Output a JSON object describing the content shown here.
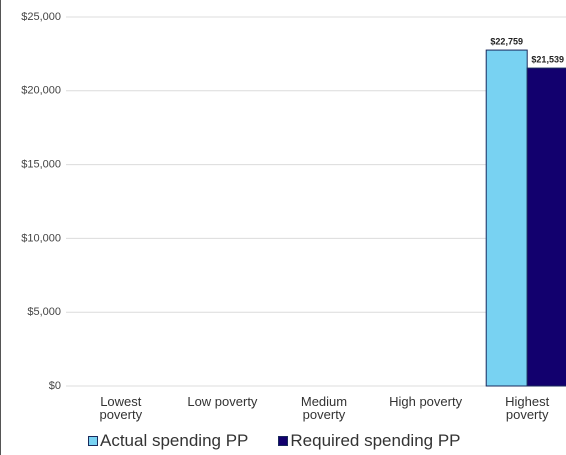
{
  "chart_data": {
    "type": "bar",
    "categories": [
      "Lowest poverty",
      "Low poverty",
      "Medium poverty",
      "High poverty",
      "Highest poverty"
    ],
    "series": [
      {
        "name": "Actual spending PP",
        "color": "#78d2f2",
        "values": [
          null,
          null,
          null,
          null,
          22759
        ],
        "value_labels": [
          null,
          null,
          null,
          null,
          "$22,759"
        ]
      },
      {
        "name": "Required spending PP",
        "color": "#12006e",
        "values": [
          null,
          null,
          null,
          null,
          21539
        ],
        "value_labels": [
          null,
          null,
          null,
          null,
          "$21,539"
        ]
      }
    ],
    "ylim": [
      0,
      25000
    ],
    "yticks": [
      {
        "value": 0,
        "label": "$0"
      },
      {
        "value": 5000,
        "label": "$5,000"
      },
      {
        "value": 10000,
        "label": "$10,000"
      },
      {
        "value": 15000,
        "label": "$15,000"
      },
      {
        "value": 20000,
        "label": "$20,000"
      },
      {
        "value": 25000,
        "label": "$25,000"
      }
    ],
    "grid": true,
    "legend": "bottom"
  }
}
